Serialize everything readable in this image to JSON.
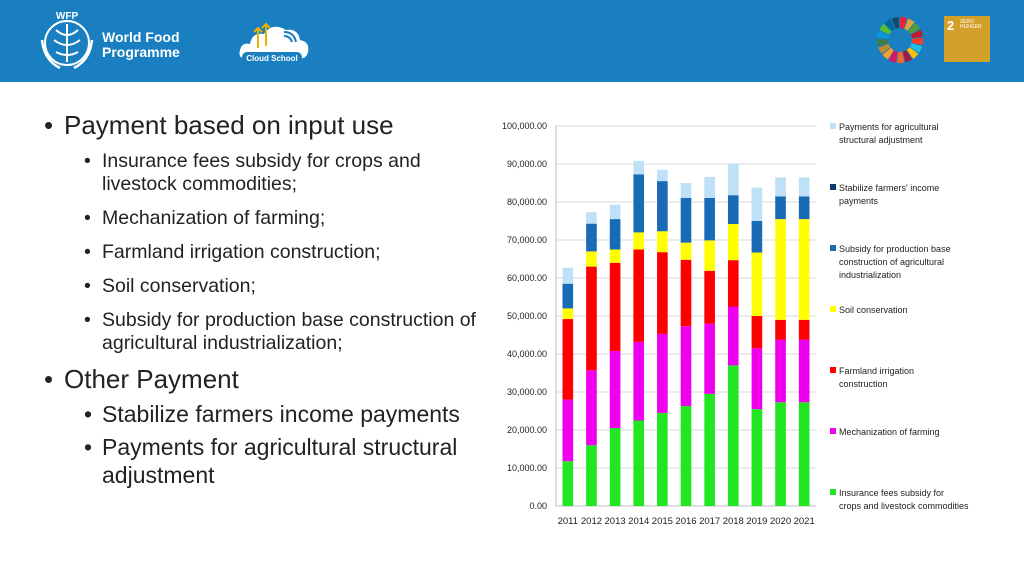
{
  "header": {
    "org_line1": "World Food",
    "org_line2": "Programme",
    "wfp_mark": "WFP",
    "cloud_school": "Cloud School",
    "sdg_goal_number": "2",
    "sdg_goal_text": "ZERO HUNGER",
    "colors": {
      "header_bg": "#1a7fc1",
      "sdg_goal_bg": "#d3a029"
    }
  },
  "bullets": {
    "b1": "Payment based on input use",
    "b1_items": [
      "Insurance fees subsidy for crops and livestock commodities;",
      "Mechanization of farming;",
      "Farmland irrigation construction;",
      "Soil conservation;",
      "Subsidy for production base construction of agricultural industrialization;"
    ],
    "b2": "Other Payment",
    "b2_items": [
      "Stabilize farmers income payments",
      "Payments for agricultural structural adjustment"
    ]
  },
  "chart_data": {
    "type": "bar",
    "stacked": true,
    "title": "",
    "xlabel": "",
    "ylabel": "",
    "ylim": [
      0,
      100000
    ],
    "ytick_step": 10000,
    "ytick_labels": [
      "0.00",
      "10,000.00",
      "20,000.00",
      "30,000.00",
      "40,000.00",
      "50,000.00",
      "60,000.00",
      "70,000.00",
      "80,000.00",
      "90,000.00",
      "100,000.00"
    ],
    "categories": [
      "2011",
      "2012",
      "2013",
      "2014",
      "2015",
      "2016",
      "2017",
      "2018",
      "2019",
      "2020",
      "2021"
    ],
    "legend_position": "right",
    "series": [
      {
        "name": "Insurance fees subsidy for crops and livestock commodities",
        "color": "#22e622",
        "values": [
          11800,
          16000,
          20500,
          22500,
          24500,
          26300,
          29500,
          37000,
          25500,
          27300,
          27300
        ]
      },
      {
        "name": "Mechanization of farming",
        "color": "#ee00ee",
        "values": [
          16200,
          19700,
          20300,
          20700,
          20800,
          21000,
          18500,
          15500,
          16000,
          16500,
          16500
        ]
      },
      {
        "name": "Farmland irrigation construction",
        "color": "#ff0000",
        "values": [
          21200,
          27300,
          23200,
          24300,
          21500,
          17500,
          13900,
          12200,
          8500,
          5200,
          5200
        ]
      },
      {
        "name": "Soil conservation",
        "color": "#ffff00",
        "values": [
          2800,
          4000,
          3500,
          4500,
          5500,
          4500,
          8000,
          9500,
          16700,
          26500,
          26500
        ]
      },
      {
        "name": "Subsidy for production base construction of agricultural industrialization",
        "color": "#1a6bb5",
        "values": [
          6500,
          7300,
          8000,
          15300,
          13200,
          11800,
          11200,
          7600,
          8300,
          6000,
          6000
        ]
      },
      {
        "name": "Stabilize farmers' income payments",
        "color": "#0d3d6e",
        "values": [
          0,
          0,
          0,
          0,
          0,
          0,
          0,
          0,
          0,
          0,
          0
        ]
      },
      {
        "name": "Payments for agricultural structural adjustment",
        "color": "#bfe1f7",
        "values": [
          4200,
          3000,
          3800,
          3500,
          3000,
          3900,
          5500,
          8300,
          8800,
          5000,
          5000
        ]
      }
    ]
  }
}
